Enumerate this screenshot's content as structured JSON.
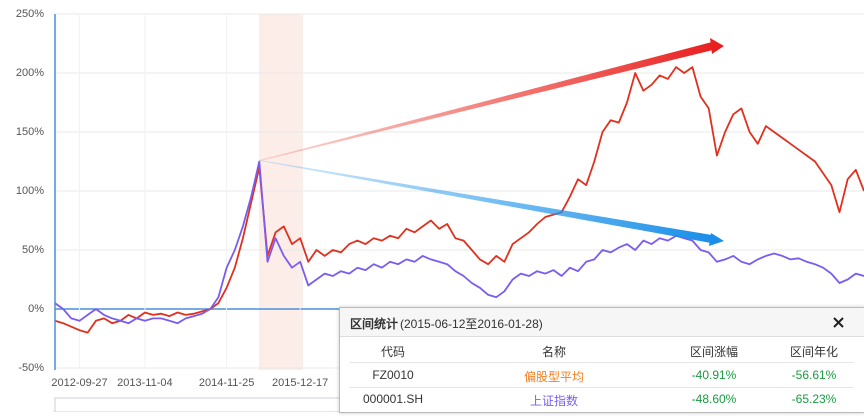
{
  "chart_data": {
    "type": "line",
    "categories": [
      null,
      null,
      null,
      "2012-09-27",
      null,
      null,
      null,
      null,
      null,
      null,
      null,
      "2013-11-04",
      null,
      null,
      null,
      null,
      null,
      null,
      null,
      null,
      null,
      "2014-11-25",
      null,
      null,
      null,
      null,
      null,
      null,
      null,
      null,
      "2015-12-17",
      null,
      null,
      null,
      null,
      null,
      null,
      null,
      null,
      null,
      null,
      null,
      null,
      null,
      null,
      null,
      null,
      null,
      null,
      null,
      null,
      null,
      null,
      null,
      null,
      null,
      null,
      null,
      null,
      null,
      null,
      null,
      null,
      null,
      null,
      null,
      null,
      null,
      null,
      null,
      null,
      null,
      null,
      null,
      null,
      null,
      null,
      null,
      null,
      null,
      null,
      null,
      null,
      null,
      null,
      null,
      null,
      null,
      null,
      null,
      null,
      null,
      null,
      null,
      null,
      null,
      null,
      null,
      null,
      null
    ],
    "series": [
      {
        "color": "#e0301e",
        "values": [
          -10,
          -12,
          -15,
          -18,
          -20,
          -10,
          -8,
          -12,
          -10,
          -5,
          -8,
          -3,
          -5,
          -4,
          -6,
          -3,
          -5,
          -4,
          -2,
          0,
          5,
          18,
          35,
          60,
          90,
          120,
          45,
          65,
          70,
          55,
          60,
          40,
          50,
          45,
          50,
          48,
          55,
          58,
          55,
          60,
          58,
          62,
          60,
          68,
          65,
          70,
          75,
          68,
          72,
          60,
          58,
          50,
          42,
          38,
          45,
          40,
          55,
          60,
          65,
          72,
          78,
          80,
          82,
          95,
          110,
          105,
          125,
          150,
          160,
          158,
          175,
          200,
          185,
          190,
          198,
          195,
          205,
          200,
          205,
          180,
          170,
          130,
          150,
          165,
          170,
          150,
          140,
          155,
          150,
          145,
          140,
          135,
          130,
          125,
          115,
          105,
          82,
          110,
          118,
          100
        ]
      },
      {
        "color": "#7b5cf0",
        "values": [
          5,
          0,
          -8,
          -10,
          -5,
          0,
          -5,
          -8,
          -10,
          -12,
          -8,
          -10,
          -8,
          -8,
          -10,
          -12,
          -8,
          -6,
          -4,
          0,
          10,
          35,
          50,
          70,
          95,
          125,
          40,
          60,
          45,
          35,
          40,
          20,
          25,
          30,
          28,
          32,
          30,
          35,
          33,
          38,
          35,
          40,
          38,
          42,
          40,
          45,
          42,
          40,
          38,
          32,
          28,
          22,
          18,
          12,
          10,
          15,
          25,
          30,
          28,
          32,
          30,
          33,
          28,
          35,
          32,
          40,
          42,
          50,
          48,
          52,
          55,
          50,
          58,
          55,
          60,
          58,
          62,
          60,
          58,
          50,
          48,
          40,
          42,
          45,
          40,
          38,
          42,
          45,
          47,
          45,
          42,
          43,
          40,
          38,
          35,
          30,
          22,
          25,
          30,
          28
        ]
      }
    ],
    "ylim": [
      -50,
      250
    ],
    "yticks": [
      {
        "value": -50,
        "label": "-50%"
      },
      {
        "value": 0,
        "label": "0%"
      },
      {
        "value": 50,
        "label": "50%"
      },
      {
        "value": 100,
        "label": "100%"
      },
      {
        "value": 150,
        "label": "150%"
      },
      {
        "value": 200,
        "label": "200%"
      },
      {
        "value": 250,
        "label": "250%"
      }
    ],
    "grid": true
  },
  "panel": {
    "title": "区间统计",
    "range": "(2015-06-12至2016-01-28)",
    "columns": [
      "代码",
      "名称",
      "区间涨幅",
      "区间年化"
    ],
    "rows": [
      [
        "FZ0010",
        "偏股型平均",
        "-40.91%",
        "-56.61%"
      ],
      [
        "000001.SH",
        "上证指数",
        "-48.60%",
        "-65.23%"
      ]
    ]
  }
}
